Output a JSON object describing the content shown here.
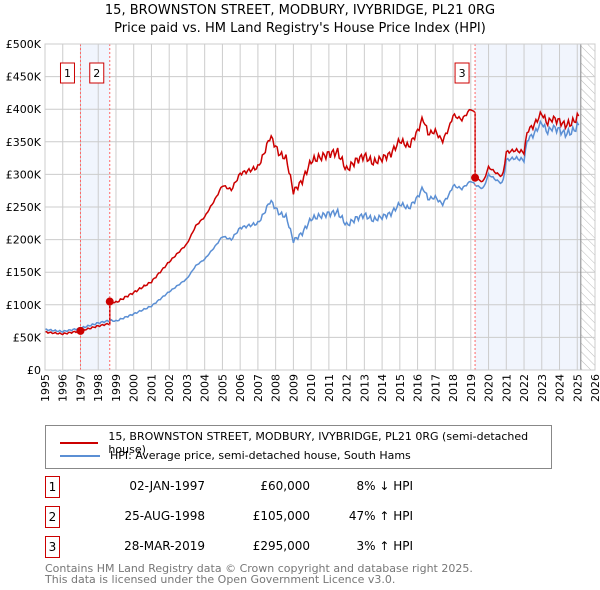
{
  "chart_data": {
    "type": "line",
    "title": "15, BROWNSTON STREET, MODBURY, IVYBRIDGE, PL21 0RG",
    "subtitle": "Price paid vs. HM Land Registry's House Price Index (HPI)",
    "xlim": [
      1995,
      2026
    ],
    "ylim": [
      0,
      500000
    ],
    "x_ticks": [
      "1995",
      "1996",
      "1997",
      "1998",
      "1999",
      "2000",
      "2001",
      "2002",
      "2003",
      "2004",
      "2005",
      "2006",
      "2007",
      "2008",
      "2009",
      "2010",
      "2011",
      "2012",
      "2013",
      "2014",
      "2015",
      "2016",
      "2017",
      "2018",
      "2019",
      "2020",
      "2021",
      "2022",
      "2023",
      "2024",
      "2025",
      "2026"
    ],
    "y_ticks": [
      {
        "v": 0,
        "l": "£0"
      },
      {
        "v": 50000,
        "l": "£50K"
      },
      {
        "v": 100000,
        "l": "£100K"
      },
      {
        "v": 150000,
        "l": "£150K"
      },
      {
        "v": 200000,
        "l": "£200K"
      },
      {
        "v": 250000,
        "l": "£250K"
      },
      {
        "v": 300000,
        "l": "£300K"
      },
      {
        "v": 350000,
        "l": "£350K"
      },
      {
        "v": 400000,
        "l": "£400K"
      },
      {
        "v": 450000,
        "l": "£450K"
      },
      {
        "v": 500000,
        "l": "£500K"
      }
    ],
    "grid": true,
    "hpi_points": [
      [
        1995,
        62000
      ],
      [
        1996,
        59000
      ],
      [
        1997,
        64000
      ],
      [
        1998,
        72000
      ],
      [
        1998.65,
        76000
      ],
      [
        1999,
        75000
      ],
      [
        2000,
        86000
      ],
      [
        2001,
        98000
      ],
      [
        2002,
        120000
      ],
      [
        2003,
        140000
      ],
      [
        2003.5,
        160000
      ],
      [
        2004,
        170000
      ],
      [
        2004.6,
        190000
      ],
      [
        2005,
        205000
      ],
      [
        2005.5,
        200000
      ],
      [
        2006,
        218000
      ],
      [
        2007,
        225000
      ],
      [
        2007.3,
        238000
      ],
      [
        2007.7,
        260000
      ],
      [
        2008.2,
        240000
      ],
      [
        2008.6,
        235000
      ],
      [
        2009,
        198000
      ],
      [
        2009.5,
        210000
      ],
      [
        2010,
        232000
      ],
      [
        2010.5,
        236000
      ],
      [
        2011,
        240000
      ],
      [
        2011.5,
        242000
      ],
      [
        2012,
        222000
      ],
      [
        2012.5,
        232000
      ],
      [
        2013,
        238000
      ],
      [
        2013.5,
        230000
      ],
      [
        2014,
        235000
      ],
      [
        2014.5,
        240000
      ],
      [
        2015,
        255000
      ],
      [
        2015.5,
        248000
      ],
      [
        2016,
        265000
      ],
      [
        2016.3,
        280000
      ],
      [
        2016.6,
        262000
      ],
      [
        2017,
        265000
      ],
      [
        2017.4,
        254000
      ],
      [
        2017.8,
        270000
      ],
      [
        2018,
        283000
      ],
      [
        2018.5,
        278000
      ],
      [
        2019,
        290000
      ],
      [
        2019.3,
        283000
      ],
      [
        2019.7,
        278000
      ],
      [
        2020,
        300000
      ],
      [
        2020.5,
        290000
      ],
      [
        2020.8,
        286000
      ],
      [
        2021,
        322000
      ],
      [
        2021.5,
        325000
      ],
      [
        2022,
        322000
      ],
      [
        2022.2,
        355000
      ],
      [
        2022.5,
        360000
      ],
      [
        2023,
        380000
      ],
      [
        2023.3,
        365000
      ],
      [
        2023.6,
        372000
      ],
      [
        2024,
        368000
      ],
      [
        2024.3,
        362000
      ],
      [
        2024.7,
        365000
      ],
      [
        2025.1,
        376000
      ]
    ],
    "series": [
      {
        "name": "15, BROWNSTON STREET, MODBURY, IVYBRIDGE, PL21 0RG (semi-detached house)",
        "color": "#cc0000"
      },
      {
        "name": "HPI: Average price, semi-detached house, South Hams",
        "color": "#5b8fd4"
      }
    ],
    "sales": [
      {
        "n": "1",
        "x": 1997.0,
        "date": "02-JAN-1997",
        "price": 60000,
        "price_label": "£60,000",
        "hpi": "8% ↓ HPI"
      },
      {
        "n": "2",
        "x": 1998.65,
        "date": "25-AUG-1998",
        "price": 105000,
        "price_label": "£105,000",
        "hpi": "47% ↑ HPI"
      },
      {
        "n": "3",
        "x": 2019.24,
        "date": "28-MAR-2019",
        "price": 295000,
        "price_label": "£295,000",
        "hpi": "3% ↑ HPI"
      }
    ],
    "shaded_ranges": [
      [
        1997.0,
        1998.65
      ],
      [
        2019.24,
        2025.2
      ]
    ],
    "hatched_from": 2025.2
  },
  "footer": [
    "Contains HM Land Registry data © Crown copyright and database right 2025.",
    "This data is licensed under the Open Government Licence v3.0."
  ]
}
